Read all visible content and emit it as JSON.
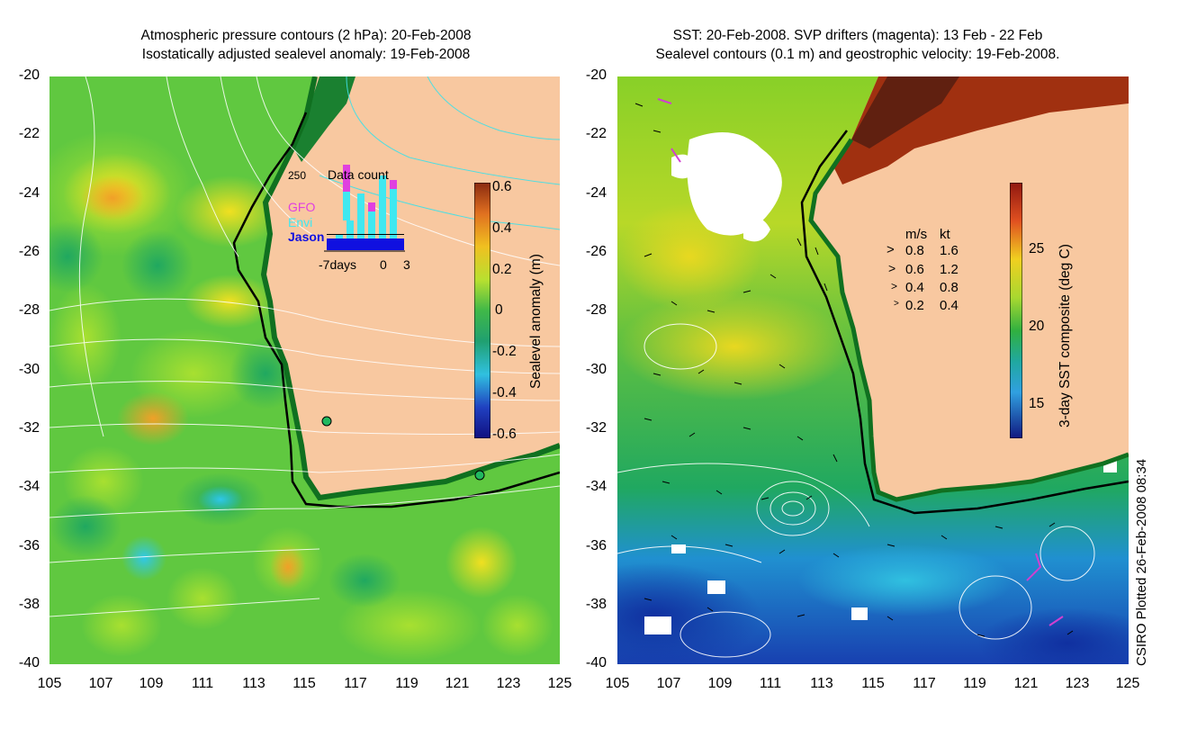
{
  "left_panel": {
    "title_line1": "Atmospheric pressure contours (2 hPa): 20-Feb-2008",
    "title_line2": "Isostatically adjusted sealevel anomaly: 19-Feb-2008",
    "y_ticks": [
      "-20",
      "-22",
      "-24",
      "-26",
      "-28",
      "-30",
      "-32",
      "-34",
      "-36",
      "-38",
      "-40"
    ],
    "x_ticks": [
      "105",
      "107",
      "109",
      "111",
      "113",
      "115",
      "117",
      "119",
      "121",
      "123",
      "125"
    ],
    "colorbar": {
      "label": "Sealevel anomaly (m)",
      "ticks": [
        "0.6",
        "0.4",
        "0.2",
        "0",
        "-0.2",
        "-0.4",
        "-0.6"
      ]
    },
    "inset": {
      "title": "Data count",
      "y_label": "250",
      "legend": [
        "GFO",
        "Envi",
        "Jason"
      ],
      "x_labels": [
        "-7days",
        "0",
        "3"
      ],
      "legend_colors": [
        "#e040e0",
        "#40e8f0",
        "#1010e0"
      ]
    }
  },
  "right_panel": {
    "title_line1": "SST: 20-Feb-2008. SVP drifters (magenta): 13 Feb - 22 Feb",
    "title_line2": "Sealevel contours (0.1 m) and geostrophic velocity: 19-Feb-2008.",
    "y_ticks": [
      "-20",
      "-22",
      "-24",
      "-26",
      "-28",
      "-30",
      "-32",
      "-34",
      "-36",
      "-38",
      "-40"
    ],
    "x_ticks": [
      "105",
      "107",
      "109",
      "111",
      "113",
      "115",
      "117",
      "119",
      "121",
      "123",
      "125"
    ],
    "colorbar": {
      "label": "3-day SST composite (deg C)",
      "ticks": [
        "25",
        "20",
        "15"
      ]
    },
    "velocity_key": {
      "header_ms": "m/s",
      "header_kt": "kt",
      "rows": [
        {
          "ms": "0.8",
          "kt": "1.6"
        },
        {
          "ms": "0.6",
          "kt": "1.2"
        },
        {
          "ms": "0.4",
          "kt": "0.8"
        },
        {
          "ms": "0.2",
          "kt": "0.4"
        }
      ]
    }
  },
  "credit": "CSIRO Plotted 26-Feb-2008 08:34",
  "colors": {
    "land": "#f8c8a0",
    "coast": "#000000"
  }
}
